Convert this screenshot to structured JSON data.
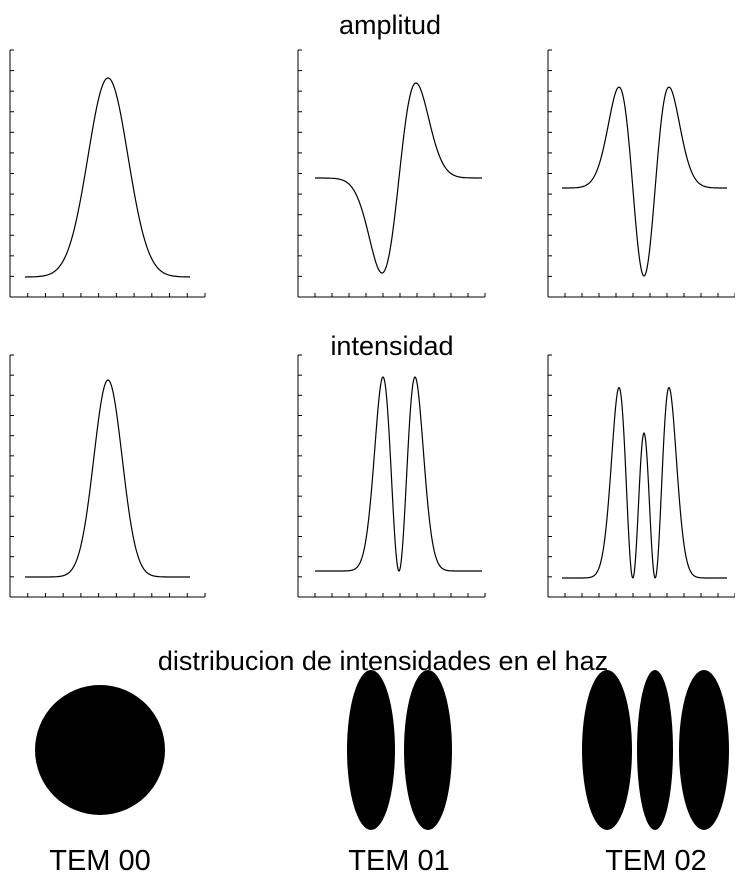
{
  "titles": {
    "amplitude": "amplitud",
    "intensity": "intensidad",
    "beam": "distribucion de intensidades en el haz"
  },
  "modes": [
    "TEM 00",
    "TEM 01",
    "TEM 02"
  ]
}
